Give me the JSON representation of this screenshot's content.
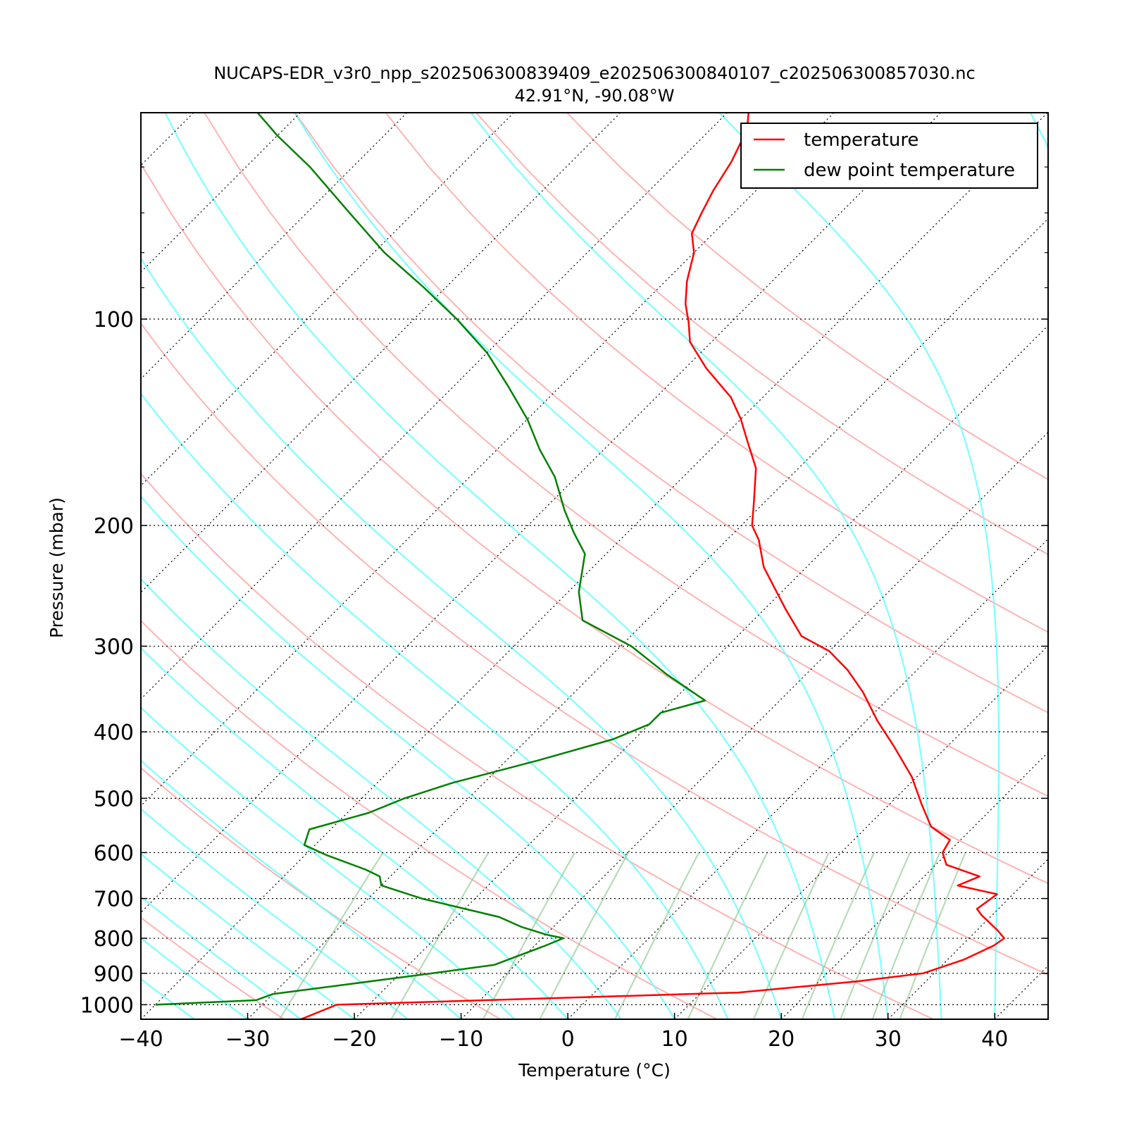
{
  "chart_data": {
    "type": "line",
    "title": "NUCAPS-EDR_v3r0_npp_s202506300839409_e202506300840107_c202506300857030.nc",
    "subtitle": "42.91°N, -90.08°W",
    "xlabel": "Temperature (°C)",
    "ylabel": "Pressure (mbar)",
    "xlim": [
      -40,
      45
    ],
    "ylim": [
      1050,
      50
    ],
    "y_scale": "log",
    "skew": "skew-T (isotherms slanted 45°)",
    "x_ticks": [
      -40,
      -30,
      -20,
      -10,
      0,
      10,
      20,
      30,
      40
    ],
    "x_tick_labels": [
      "−40",
      "−30",
      "−20",
      "−10",
      "0",
      "10",
      "20",
      "30",
      "40"
    ],
    "y_ticks": [
      100,
      200,
      300,
      400,
      500,
      600,
      700,
      800,
      900,
      1000
    ],
    "y_tick_labels": [
      "100",
      "200",
      "300",
      "400",
      "500",
      "600",
      "700",
      "800",
      "900",
      "1000"
    ],
    "grid": "dotted horizontal lines at pressure ticks; dotted skewed isotherms",
    "background_lines": {
      "dry_adiabats_color": "#ff9999",
      "moist_adiabats_color": "#66ffff",
      "mixing_ratio_color": "#90c890",
      "isotherm_color": "#000000"
    },
    "legend": {
      "placement": "top-right"
    },
    "series": [
      {
        "name": "temperature",
        "color": "#ff0000",
        "points": [
          [
            -25,
            1050
          ],
          [
            -23,
            1000
          ],
          [
            13.5,
            960
          ],
          [
            23.5,
            925
          ],
          [
            29,
            900
          ],
          [
            31.5,
            860
          ],
          [
            33,
            820
          ],
          [
            33.3,
            800
          ],
          [
            32,
            780
          ],
          [
            29,
            740
          ],
          [
            28,
            725
          ],
          [
            28.5,
            690
          ],
          [
            24,
            670
          ],
          [
            25.2,
            650
          ],
          [
            21,
            625
          ],
          [
            19.5,
            600
          ],
          [
            19,
            575
          ],
          [
            16,
            550
          ],
          [
            13,
            510
          ],
          [
            9.5,
            465
          ],
          [
            5,
            420
          ],
          [
            1,
            385
          ],
          [
            -3,
            350
          ],
          [
            -6.5,
            325
          ],
          [
            -10,
            305
          ],
          [
            -14,
            290
          ],
          [
            -18,
            265
          ],
          [
            -24,
            230
          ],
          [
            -27,
            210
          ],
          [
            -29,
            200
          ],
          [
            -31,
            185
          ],
          [
            -34,
            165
          ],
          [
            -37.5,
            150
          ],
          [
            -40,
            140
          ],
          [
            -43,
            130
          ],
          [
            -48,
            118
          ],
          [
            -52,
            108
          ],
          [
            -54,
            101
          ],
          [
            -56,
            95
          ],
          [
            -58,
            88
          ],
          [
            -60,
            80
          ],
          [
            -62,
            75
          ],
          [
            -63,
            70
          ],
          [
            -64,
            65
          ],
          [
            -65,
            59
          ],
          [
            -66,
            55
          ],
          [
            -67,
            52
          ],
          [
            -68,
            50
          ]
        ]
      },
      {
        "name": "dew point temperature",
        "color": "#008000",
        "points": [
          [
            -40,
            1000
          ],
          [
            -31,
            985
          ],
          [
            -30,
            965
          ],
          [
            -17,
            900
          ],
          [
            -12,
            875
          ],
          [
            -9,
            820
          ],
          [
            -8,
            800
          ],
          [
            -10,
            790
          ],
          [
            -13,
            770
          ],
          [
            -16,
            745
          ],
          [
            -25,
            700
          ],
          [
            -30,
            670
          ],
          [
            -31,
            650
          ],
          [
            -33,
            635
          ],
          [
            -38,
            605
          ],
          [
            -41,
            585
          ],
          [
            -42,
            555
          ],
          [
            -38,
            525
          ],
          [
            -36,
            500
          ],
          [
            -33,
            475
          ],
          [
            -27,
            440
          ],
          [
            -22,
            410
          ],
          [
            -20,
            390
          ],
          [
            -20,
            375
          ],
          [
            -17,
            360
          ],
          [
            -23,
            330
          ],
          [
            -29,
            300
          ],
          [
            -36,
            275
          ],
          [
            -39,
            250
          ],
          [
            -42,
            220
          ],
          [
            -45,
            205
          ],
          [
            -48,
            190
          ],
          [
            -52,
            170
          ],
          [
            -56,
            155
          ],
          [
            -60,
            140
          ],
          [
            -65,
            125
          ],
          [
            -70,
            112
          ],
          [
            -76,
            100
          ],
          [
            -82,
            90
          ],
          [
            -89,
            80
          ],
          [
            -96,
            70
          ],
          [
            -104,
            60
          ],
          [
            -110,
            54
          ],
          [
            -114,
            50
          ]
        ]
      }
    ]
  }
}
